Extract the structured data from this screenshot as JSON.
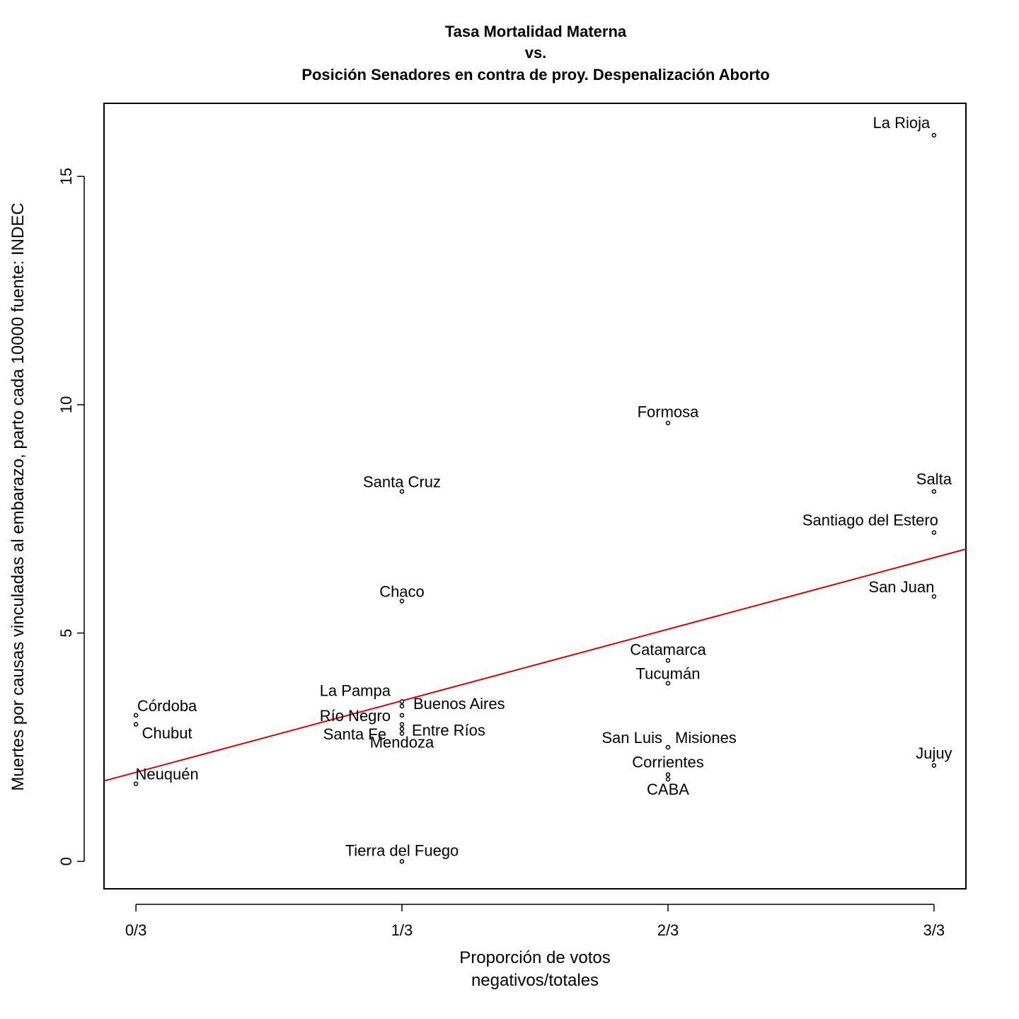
{
  "chart_data": {
    "type": "scatter",
    "title_lines": [
      "Tasa Mortalidad Materna",
      "vs.",
      "Posición Senadores en contra de proy. Despenalización Aborto"
    ],
    "xlabel_lines": [
      "Proporción de votos",
      "negativos/totales"
    ],
    "ylabel": "Muertes por causas vinculadas al embarazo, parto cada 10000 fuente: INDEC",
    "xlim": [
      -0.04,
      1.04
    ],
    "ylim": [
      -0.6,
      16.6
    ],
    "x_ticks": [
      {
        "value": 0,
        "label": "0/3"
      },
      {
        "value": 0.3333,
        "label": "1/3"
      },
      {
        "value": 0.6667,
        "label": "2/3"
      },
      {
        "value": 1,
        "label": "3/3"
      }
    ],
    "y_ticks": [
      {
        "value": 0,
        "label": "0"
      },
      {
        "value": 5,
        "label": "5"
      },
      {
        "value": 10,
        "label": "10"
      },
      {
        "value": 15,
        "label": "15"
      }
    ],
    "grid": false,
    "legend": "none",
    "points": [
      {
        "name": "La Rioja",
        "x": 1,
        "y": 15.9
      },
      {
        "name": "Salta",
        "x": 1,
        "y": 8.1
      },
      {
        "name": "Santiago del Estero",
        "x": 1,
        "y": 7.2
      },
      {
        "name": "San Juan",
        "x": 1,
        "y": 5.8
      },
      {
        "name": "Jujuy",
        "x": 1,
        "y": 2.1
      },
      {
        "name": "Formosa",
        "x": 0.6667,
        "y": 9.6
      },
      {
        "name": "Catamarca",
        "x": 0.6667,
        "y": 4.4
      },
      {
        "name": "Tucumán",
        "x": 0.6667,
        "y": 3.9
      },
      {
        "name": "San Luis",
        "x": 0.6667,
        "y": 2.5
      },
      {
        "name": "Misiones",
        "x": 0.6667,
        "y": 2.5
      },
      {
        "name": "Corrientes",
        "x": 0.6667,
        "y": 1.9
      },
      {
        "name": "CABA",
        "x": 0.6667,
        "y": 1.8
      },
      {
        "name": "Santa Cruz",
        "x": 0.3333,
        "y": 8.1
      },
      {
        "name": "Chaco",
        "x": 0.3333,
        "y": 5.7
      },
      {
        "name": "La Pampa",
        "x": 0.3333,
        "y": 3.5
      },
      {
        "name": "Buenos Aires",
        "x": 0.3333,
        "y": 3.4
      },
      {
        "name": "Río Negro",
        "x": 0.3333,
        "y": 3.2
      },
      {
        "name": "Entre Ríos",
        "x": 0.3333,
        "y": 3.0
      },
      {
        "name": "Santa Fe",
        "x": 0.3333,
        "y": 2.9
      },
      {
        "name": "Mendoza",
        "x": 0.3333,
        "y": 2.8
      },
      {
        "name": "Tierra del Fuego",
        "x": 0.3333,
        "y": 0.0
      },
      {
        "name": "Córdoba",
        "x": 0,
        "y": 3.2
      },
      {
        "name": "Chubut",
        "x": 0,
        "y": 3.0
      },
      {
        "name": "Neuquén",
        "x": 0,
        "y": 1.7
      }
    ],
    "regression_line": {
      "intercept": 1.95,
      "slope": 4.7,
      "color": "#e00000"
    },
    "point_color": "#000000"
  }
}
